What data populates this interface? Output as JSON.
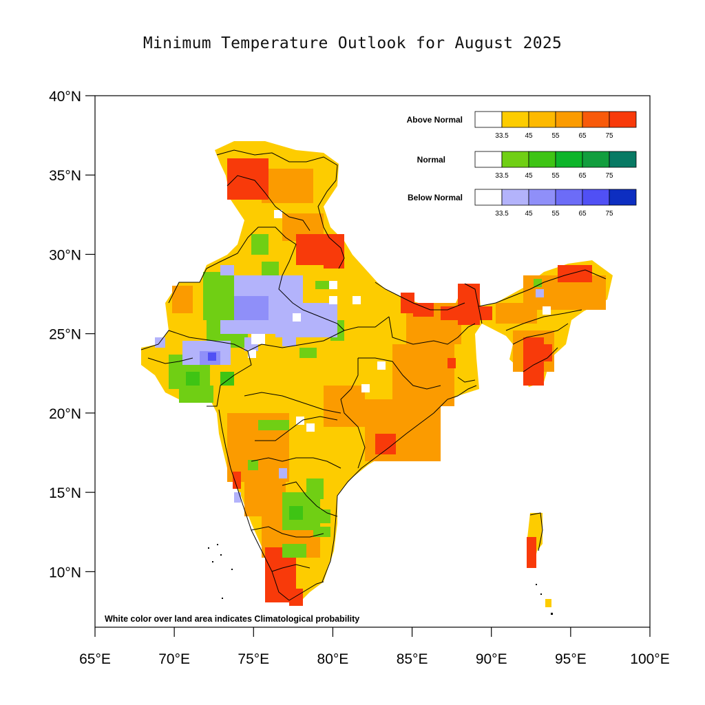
{
  "title": "Minimum Temperature Outlook for August 2025",
  "note": "White color over land area indicates Climatological probability",
  "axes": {
    "x_ticks": [
      "65°E",
      "70°E",
      "75°E",
      "80°E",
      "85°E",
      "90°E",
      "95°E",
      "100°E"
    ],
    "y_ticks": [
      "40°N",
      "35°N",
      "30°N",
      "25°N",
      "20°N",
      "15°N",
      "10°N"
    ],
    "lon_range": [
      65,
      100
    ],
    "lat_range": [
      6.5,
      40
    ]
  },
  "legend": {
    "tick_labels": [
      "33.5",
      "45",
      "55",
      "65",
      "75"
    ],
    "rows": [
      {
        "label": "Above Normal",
        "colors": [
          "#ffffff",
          "#fdcc00",
          "#fdb900",
          "#fb9b00",
          "#f85a0a",
          "#f83a0a"
        ]
      },
      {
        "label": "Normal",
        "colors": [
          "#ffffff",
          "#70cf14",
          "#3ec414",
          "#0db52a",
          "#129e3e",
          "#087a64"
        ]
      },
      {
        "label": "Below Normal",
        "colors": [
          "#ffffff",
          "#b3b3fb",
          "#8f8ff9",
          "#6c6cf7",
          "#5050f5",
          "#0d2ec1"
        ]
      }
    ]
  },
  "colors": {
    "above_normal_base": "#fdcc00",
    "above_normal_mid": "#fb9b00",
    "above_normal_high": "#f83a0a",
    "normal": "#70cf14",
    "below_normal": "#b3b3fb",
    "below_normal_mid": "#8f8ff9"
  }
}
